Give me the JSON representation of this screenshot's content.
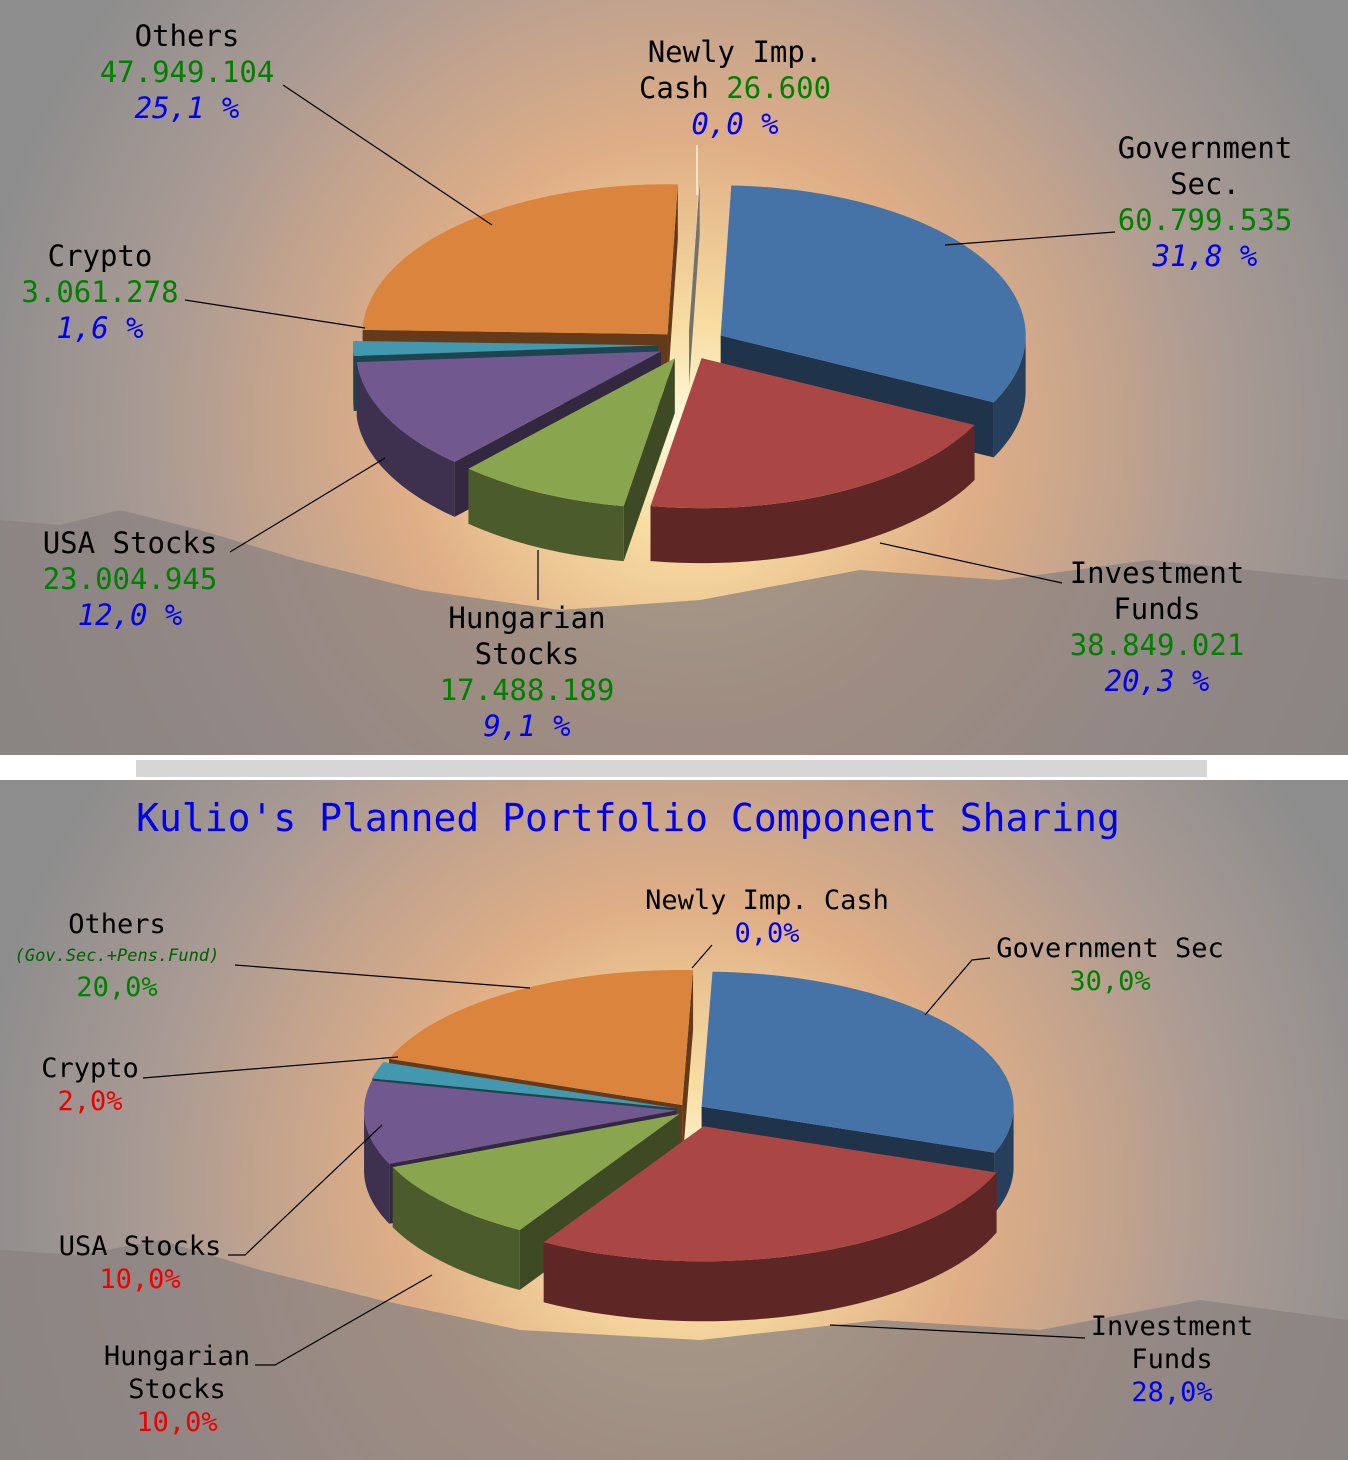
{
  "chart_data": [
    {
      "type": "pie",
      "categories": [
        "Government Sec.",
        "Investment Funds",
        "Hungarian Stocks",
        "USA Stocks",
        "Crypto",
        "Others",
        "Newly Imp. Cash"
      ],
      "values": [
        60799535,
        38849021,
        17488189,
        23004945,
        3061278,
        47949104,
        26600
      ],
      "value_labels": [
        "60.799.535",
        "38.849.021",
        "17.488.189",
        "23.004.945",
        "3.061.278",
        "47.949.104",
        "26.600"
      ],
      "percent_labels": [
        "31,8 %",
        "20,3 %",
        "9,1 %",
        "12,0 %",
        "1,6 %",
        "25,1 %",
        "0,0 %"
      ],
      "colors": [
        "#4572a7",
        "#aa4643",
        "#89a54e",
        "#71588f",
        "#4198af",
        "#db843d",
        "#fffdf0"
      ]
    },
    {
      "type": "pie",
      "title": "Kulio's Planned Portfolio Component Sharing",
      "categories": [
        "Government Sec",
        "Investment Funds",
        "Hungarian Stocks",
        "USA Stocks",
        "Crypto",
        "Others",
        "Newly Imp. Cash"
      ],
      "sublabels": [
        null,
        null,
        null,
        null,
        null,
        "(Gov.Sec.+Pens.Fund)",
        null
      ],
      "values": [
        30,
        28,
        10,
        10,
        2,
        20,
        0
      ],
      "value_labels": [
        "30,0%",
        "28,0%",
        "10,0%",
        "10,0%",
        "2,0%",
        "20,0%",
        "0,0%"
      ],
      "label_colors": [
        "#008000",
        "#0000ee",
        "#ee0000",
        "#ee0000",
        "#ee0000",
        "#008000",
        "#0000ee"
      ],
      "colors": [
        "#4572a7",
        "#aa4643",
        "#89a54e",
        "#71588f",
        "#4198af",
        "#db843d",
        "#fffdf0"
      ]
    }
  ]
}
